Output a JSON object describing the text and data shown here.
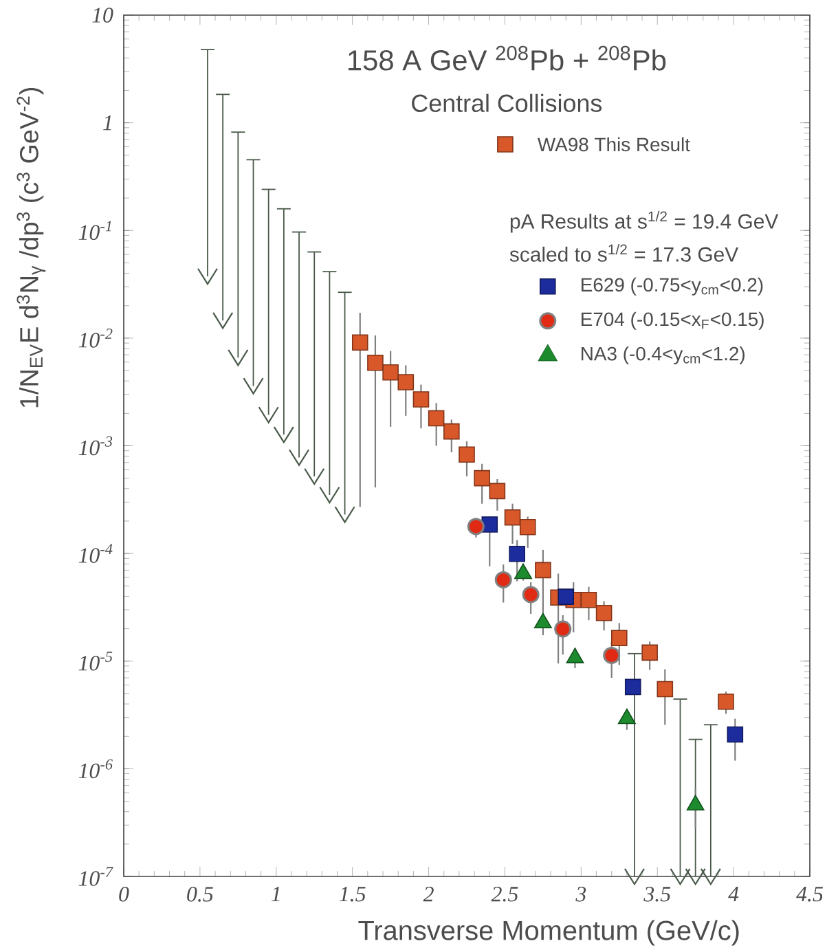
{
  "chart_data": {
    "type": "scatter",
    "title": "158 A GeV $^{208}$Pb + $^{208}$Pb",
    "subtitle": "Central Collisions",
    "xlabel": "Transverse Momentum (GeV/c)",
    "ylabel": "1/N$_{EV}$E d$^{3}$N$_{γ}$ /dp$^{3}$  (c$^{3}$ GeV$^{-2}$)",
    "annotations": [
      "pA Results at s$^{1/2}$ = 19.4 GeV",
      "scaled to  s$^{1/2}$ = 17.3 GeV"
    ],
    "log": true,
    "legend": "top right",
    "xlim": [
      0,
      4.5
    ],
    "xticks": [
      0,
      0.5,
      1,
      1.5,
      2,
      2.5,
      3,
      3.5,
      4,
      4.5
    ],
    "ylim": [
      1e-07,
      10
    ],
    "yticks": [
      {
        "value": 1e-07,
        "label": "10$^{-7}$"
      },
      {
        "value": 1e-06,
        "label": "10$^{-6}$"
      },
      {
        "value": 1e-05,
        "label": "10$^{-5}$"
      },
      {
        "value": 0.0001,
        "label": "10$^{-4}$"
      },
      {
        "value": 0.001,
        "label": "10$^{-3}$"
      },
      {
        "value": 0.01,
        "label": "10$^{-2}$"
      },
      {
        "value": 0.1,
        "label": "10$^{-1}$"
      },
      1,
      10
    ],
    "series": [
      {
        "type": "scatter",
        "marker": "cross",
        "color": "#4a5a4a",
        "x": [
          0.55,
          0.65,
          0.75,
          0.85,
          0.95,
          1.05,
          1.15,
          1.25,
          1.35,
          1.45,
          3.35,
          3.65,
          3.75,
          3.85
        ],
        "values": [
          0.0375,
          0.0146,
          0.0066,
          0.0036,
          0.00194,
          0.00127,
          0.00078,
          0.00052,
          0.00035,
          0.00023,
          1e-07,
          1e-07,
          1e-07,
          1e-07
        ],
        "errors": [
          [
            0.0375,
            4.85
          ],
          [
            0.0146,
            1.86
          ],
          [
            0.0066,
            0.83
          ],
          [
            0.0036,
            0.46
          ],
          [
            0.00194,
            0.244
          ],
          [
            0.00127,
            0.161
          ],
          [
            0.00078,
            0.098
          ],
          [
            0.00052,
            0.064
          ],
          [
            0.00035,
            0.042
          ],
          [
            0.00023,
            0.027
          ],
          [
            1e-07,
            1.19e-05
          ],
          [
            1e-07,
            4.5e-06
          ],
          [
            1e-07,
            1.9e-06
          ],
          [
            1e-07,
            2.6e-06
          ]
        ]
      },
      {
        "type": "scatter",
        "name": "WA98 This Result",
        "marker": "square",
        "color": "#d9582a",
        "x": [
          1.55,
          1.65,
          1.75,
          1.85,
          1.95,
          2.05,
          2.15,
          2.25,
          2.35,
          2.45,
          2.55,
          2.65,
          2.75,
          2.85,
          2.95,
          3.05,
          3.15,
          3.25,
          3.45,
          3.55,
          3.95
        ],
        "values": [
          0.0091,
          0.0059,
          0.0048,
          0.0039,
          0.0027,
          0.0018,
          0.00136,
          0.00083,
          0.0005,
          0.00038,
          0.000216,
          0.000176,
          7e-05,
          3.9e-05,
          3.7e-05,
          3.7e-05,
          2.8e-05,
          1.64e-05,
          1.2e-05,
          5.5e-06,
          4.2e-06
        ],
        "errors": [
          [
            0.00027,
            0.0172
          ],
          [
            0.00041,
            0.0106
          ],
          [
            0.0015,
            0.0076
          ],
          [
            0.0019,
            0.0056
          ],
          [
            0.00145,
            0.0037
          ],
          [
            0.001,
            0.0025
          ],
          [
            0.00087,
            0.00175
          ],
          [
            0.00052,
            0.0011
          ],
          [
            0.00029,
            0.00068
          ],
          [
            0.00025,
            0.00049
          ],
          [
            0.000123,
            0.00029
          ],
          [
            0.000113,
            0.00022
          ],
          [
            2.8e-05,
            0.000108
          ],
          [
            9.5e-06,
            6.5e-05
          ],
          [
            1.85e-05,
            5.4e-05
          ],
          [
            2.4e-05,
            4.9e-05
          ],
          [
            1.93e-05,
            3.6e-05
          ],
          [
            9.2e-06,
            2.26e-05
          ],
          [
            8.3e-06,
            1.52e-05
          ],
          [
            2.56e-06,
            8.4e-06
          ],
          [
            3.24e-06,
            5.2e-06
          ]
        ]
      },
      {
        "type": "scatter",
        "name": "E629  (-0.75<y$_{cm}$<0.2)",
        "marker": "square",
        "color": "#1c2c9c",
        "x": [
          2.4,
          2.58,
          2.9,
          3.34,
          4.01
        ],
        "values": [
          0.000186,
          9.9e-05,
          3.96e-05,
          5.75e-06,
          2.08e-06
        ],
        "errors": [
          [
            7.6e-05,
            0.00022
          ],
          [
            5.5e-05,
            0.000133
          ],
          null,
          null,
          [
            1.19e-06,
            2.92e-06
          ]
        ]
      },
      {
        "type": "scatter",
        "name": "E704  (-0.15<x$_{F}$<0.15)",
        "marker": "circle",
        "color": "#e02a14",
        "x": [
          2.31,
          2.49,
          2.67,
          2.88,
          3.2
        ],
        "values": [
          0.000178,
          5.7e-05,
          4.15e-05,
          1.99e-05,
          1.13e-05
        ],
        "errors": [
          [
            0.000141,
            0.000213
          ],
          [
            3.5e-05,
            7.9e-05
          ],
          [
            2.75e-05,
            5.4e-05
          ],
          [
            1.15e-05,
            2.67e-05
          ],
          [
            7e-06,
            1.52e-05
          ]
        ]
      },
      {
        "type": "scatter",
        "name": "NA3  (-0.4<y$_{cm}$<1.2)",
        "marker": "triangle",
        "color": "#1e8a2e",
        "x": [
          2.62,
          2.75,
          2.96,
          3.3,
          3.75
        ],
        "values": [
          6.5e-05,
          2.26e-05,
          1.07e-05,
          2.92e-06,
          4.6e-07
        ],
        "errors": [
          [
            5.6e-05,
            7.6e-05
          ],
          [
            1.74e-05,
            2.8e-05
          ],
          [
            8.6e-06,
            1.32e-05
          ],
          [
            2.3e-06,
            3.5e-06
          ],
          [
            2.8e-07,
            6.5e-07
          ]
        ]
      }
    ]
  }
}
